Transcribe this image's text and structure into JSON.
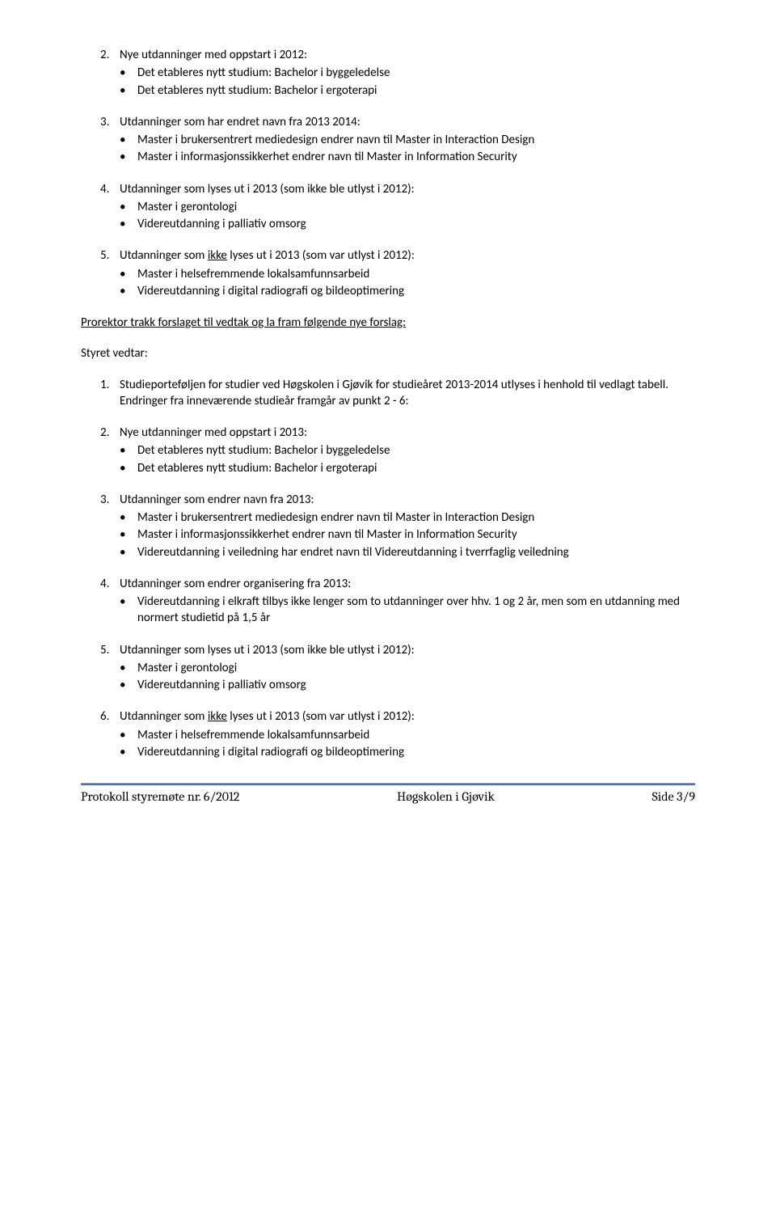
{
  "s2": {
    "num": "2.",
    "title": "Nye utdanninger med oppstart i 2012:",
    "items": [
      "Det etableres nytt studium: Bachelor i byggeledelse",
      "Det etableres nytt studium: Bachelor i ergoterapi"
    ]
  },
  "s3": {
    "num": "3.",
    "title": "Utdanninger som har endret navn fra 2013 2014:",
    "items": [
      "Master i brukersentrert mediedesign endrer navn til Master in Interaction Design",
      "Master i informasjonssikkerhet endrer navn til Master in Information Security"
    ]
  },
  "s4": {
    "num": "4.",
    "title": "Utdanninger som lyses ut i 2013 (som ikke ble utlyst i 2012):",
    "items": [
      "Master i gerontologi",
      "Videreutdanning i palliativ omsorg"
    ]
  },
  "s5": {
    "num": "5.",
    "title_pre": "Utdanninger som ",
    "title_und": "ikke",
    "title_post": " lyses ut i 2013 (som var utlyst i 2012):",
    "items": [
      "Master i helsefremmende lokalsamfunnsarbeid",
      "Videreutdanning i digital radiografi og bildeoptimering"
    ]
  },
  "intro": "Prorektor trakk forslaget til vedtak og la fram følgende nye forslag:",
  "styret": "Styret vedtar:",
  "n1": {
    "num": "1.",
    "text": "Studieporteføljen for studier ved Høgskolen i Gjøvik for studieåret 2013-2014 utlyses i henhold til vedlagt tabell. Endringer fra inneværende studieår framgår av punkt 2 - 6:"
  },
  "n2": {
    "num": "2.",
    "title": "Nye utdanninger med oppstart i 2013:",
    "items": [
      "Det etableres nytt studium: Bachelor i byggeledelse",
      "Det etableres nytt studium: Bachelor i ergoterapi"
    ]
  },
  "n3": {
    "num": "3.",
    "title": "Utdanninger som endrer navn fra 2013:",
    "items": [
      "Master i brukersentrert mediedesign endrer navn til Master in Interaction Design",
      "Master i informasjonssikkerhet endrer navn til Master in Information Security",
      "Videreutdanning i veiledning har endret navn til Videreutdanning i tverrfaglig veiledning"
    ]
  },
  "n4": {
    "num": "4.",
    "title": "Utdanninger som endrer organisering fra 2013:",
    "items": [
      "Videreutdanning i elkraft tilbys ikke lenger som to utdanninger over hhv. 1 og 2 år, men som en utdanning med normert studietid på 1,5 år"
    ]
  },
  "n5": {
    "num": "5.",
    "title": "Utdanninger som lyses ut i 2013 (som ikke ble utlyst i 2012):",
    "items": [
      "Master i gerontologi",
      "Videreutdanning i palliativ omsorg"
    ]
  },
  "n6": {
    "num": "6.",
    "title_pre": "Utdanninger som ",
    "title_und": "ikke",
    "title_post": " lyses ut i 2013 (som var utlyst i 2012):",
    "items": [
      "Master i helsefremmende lokalsamfunnsarbeid",
      "Videreutdanning i digital radiografi og bildeoptimering"
    ]
  },
  "footer": {
    "left": "Protokoll styremøte nr. 6/2012",
    "center": "Høgskolen i Gjøvik",
    "right": "Side 3/9"
  },
  "colors": {
    "text": "#000000",
    "footer_line": "#4472c4",
    "background": "#ffffff"
  },
  "typography": {
    "body_font": "Calibri",
    "body_size_pt": 11,
    "footer_font": "Cambria",
    "footer_size_pt": 12
  }
}
